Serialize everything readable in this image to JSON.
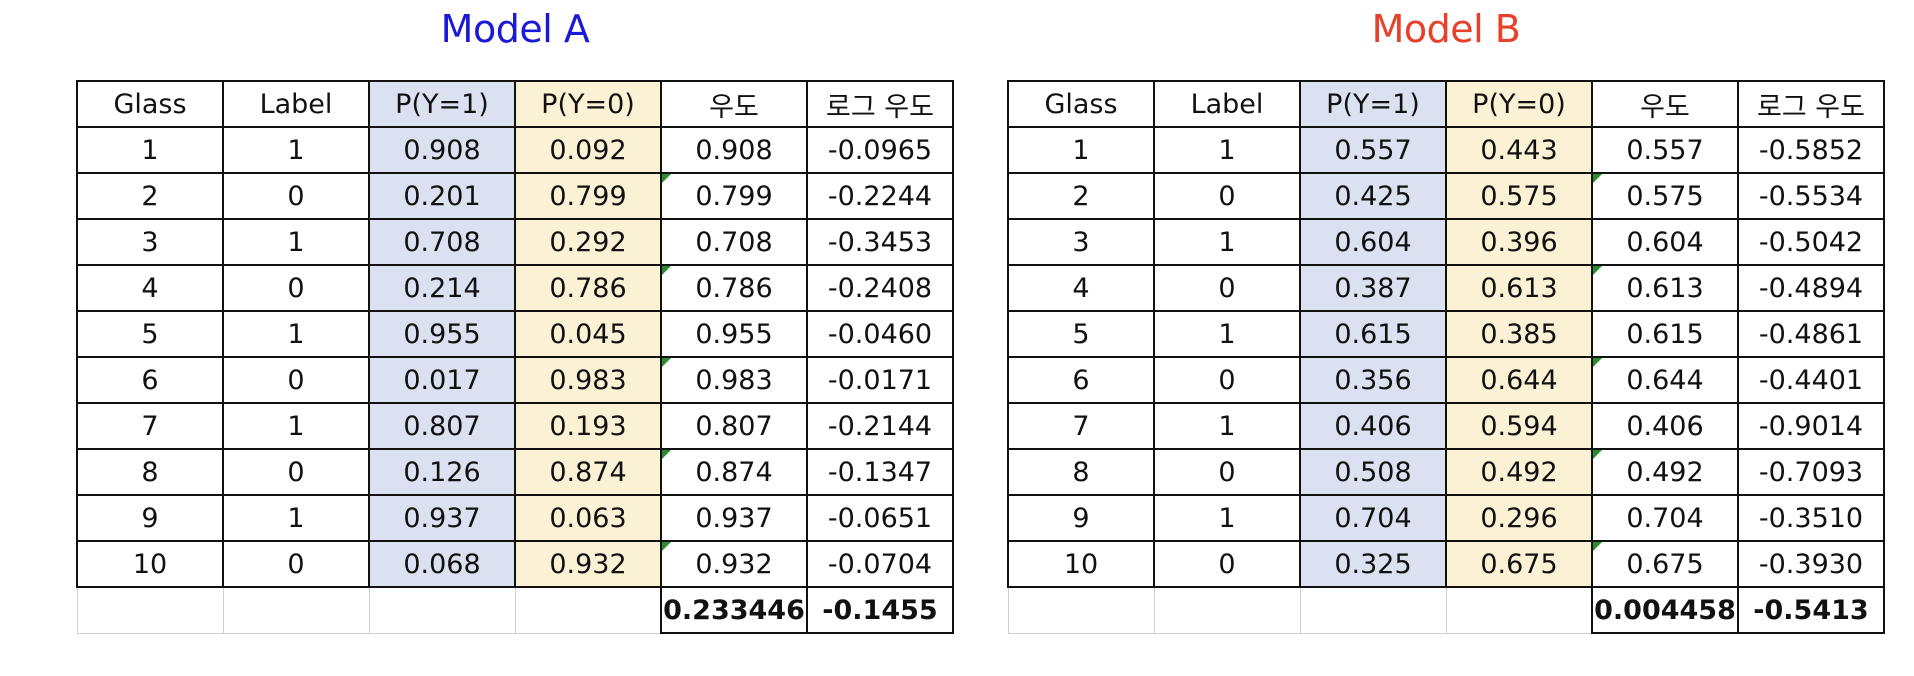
{
  "columns": [
    "Glass",
    "Label",
    "P(Y=1)",
    "P(Y=0)",
    "우도",
    "로그 우도"
  ],
  "colors": {
    "title_a": "#1a1ad6",
    "title_b": "#e8402a",
    "p1_bg": "#dbe1f1",
    "p0_bg": "#fbf1d4"
  },
  "models": [
    {
      "title": "Model A",
      "rows": [
        [
          "1",
          "1",
          "0.908",
          "0.092",
          "0.908",
          "-0.0965"
        ],
        [
          "2",
          "0",
          "0.201",
          "0.799",
          "0.799",
          "-0.2244"
        ],
        [
          "3",
          "1",
          "0.708",
          "0.292",
          "0.708",
          "-0.3453"
        ],
        [
          "4",
          "0",
          "0.214",
          "0.786",
          "0.786",
          "-0.2408"
        ],
        [
          "5",
          "1",
          "0.955",
          "0.045",
          "0.955",
          "-0.0460"
        ],
        [
          "6",
          "0",
          "0.017",
          "0.983",
          "0.983",
          "-0.0171"
        ],
        [
          "7",
          "1",
          "0.807",
          "0.193",
          "0.807",
          "-0.2144"
        ],
        [
          "8",
          "0",
          "0.126",
          "0.874",
          "0.874",
          "-0.1347"
        ],
        [
          "9",
          "1",
          "0.937",
          "0.063",
          "0.937",
          "-0.0651"
        ],
        [
          "10",
          "0",
          "0.068",
          "0.932",
          "0.932",
          "-0.0704"
        ]
      ],
      "likelihood_total": "0.233446",
      "log_likelihood_avg": "-0.1455"
    },
    {
      "title": "Model B",
      "rows": [
        [
          "1",
          "1",
          "0.557",
          "0.443",
          "0.557",
          "-0.5852"
        ],
        [
          "2",
          "0",
          "0.425",
          "0.575",
          "0.575",
          "-0.5534"
        ],
        [
          "3",
          "1",
          "0.604",
          "0.396",
          "0.604",
          "-0.5042"
        ],
        [
          "4",
          "0",
          "0.387",
          "0.613",
          "0.613",
          "-0.4894"
        ],
        [
          "5",
          "1",
          "0.615",
          "0.385",
          "0.615",
          "-0.4861"
        ],
        [
          "6",
          "0",
          "0.356",
          "0.644",
          "0.644",
          "-0.4401"
        ],
        [
          "7",
          "1",
          "0.406",
          "0.594",
          "0.406",
          "-0.9014"
        ],
        [
          "8",
          "0",
          "0.508",
          "0.492",
          "0.492",
          "-0.7093"
        ],
        [
          "9",
          "1",
          "0.704",
          "0.296",
          "0.704",
          "-0.3510"
        ],
        [
          "10",
          "0",
          "0.325",
          "0.675",
          "0.675",
          "-0.3930"
        ]
      ],
      "likelihood_total": "0.004458",
      "log_likelihood_avg": "-0.5413"
    }
  ]
}
